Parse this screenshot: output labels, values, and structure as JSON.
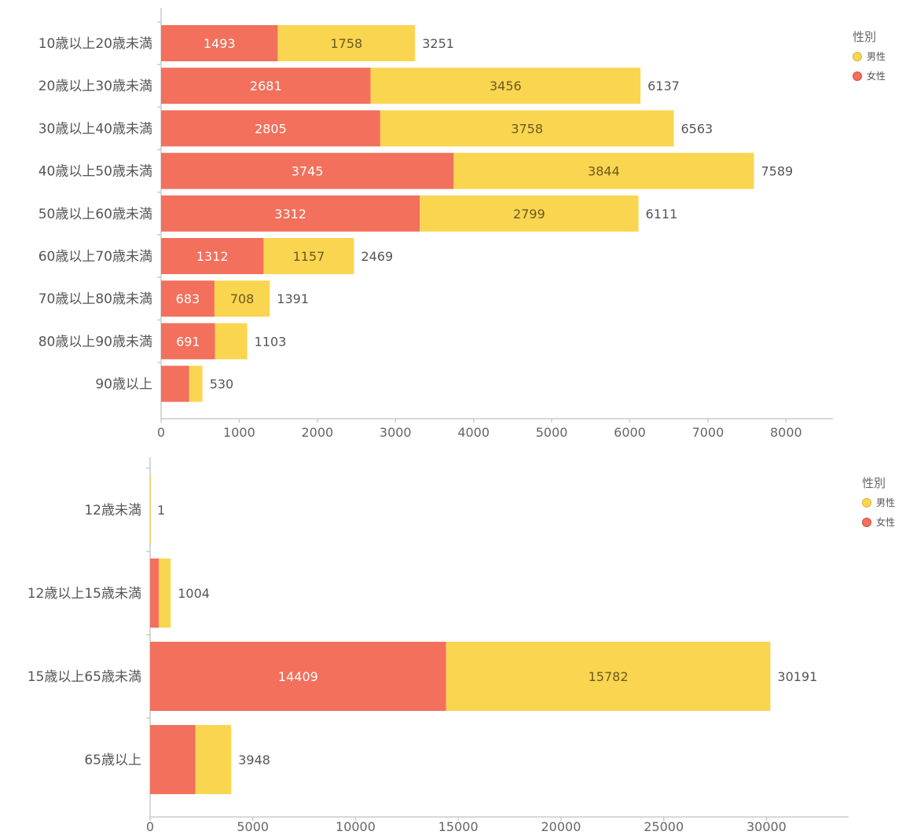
{
  "colors": {
    "female": "#F2705C",
    "male": "#FAD550",
    "female_text": "#ffffff",
    "male_text": "#6b5a20"
  },
  "chart_data": [
    {
      "type": "bar",
      "orientation": "horizontal",
      "stacked": true,
      "categories": [
        "10歳以上20歳未満",
        "20歳以上30歳未満",
        "30歳以上40歳未満",
        "40歳以上50歳未満",
        "50歳以上60歳未満",
        "60歳以上70歳未満",
        "70歳以上80歳未満",
        "80歳以上90歳未満",
        "90歳以上"
      ],
      "series": [
        {
          "name": "女性",
          "values": [
            1493,
            2681,
            2805,
            3745,
            3312,
            1312,
            683,
            691,
            360
          ]
        },
        {
          "name": "男性",
          "values": [
            1758,
            3456,
            3758,
            3844,
            2799,
            1157,
            708,
            412,
            170
          ]
        }
      ],
      "segment_labels": {
        "女性": [
          "1493",
          "2681",
          "2805",
          "3745",
          "3312",
          "1312",
          "683",
          "691",
          ""
        ],
        "男性": [
          "1758",
          "3456",
          "3758",
          "3844",
          "2799",
          "1157",
          "708",
          "",
          ""
        ]
      },
      "totals": [
        "3251",
        "6137",
        "6563",
        "7589",
        "6111",
        "2469",
        "1391",
        "1103",
        "530"
      ],
      "xlim": [
        0,
        8600
      ],
      "ticks": [
        "0",
        "1000",
        "2000",
        "3000",
        "4000",
        "5000",
        "6000",
        "7000",
        "8000"
      ],
      "tick_values": [
        0,
        1000,
        2000,
        3000,
        4000,
        5000,
        6000,
        7000,
        8000
      ],
      "legend_title": "性別",
      "legend": [
        "男性",
        "女性"
      ],
      "legend_position": "top-right"
    },
    {
      "type": "bar",
      "orientation": "horizontal",
      "stacked": true,
      "categories": [
        "12歳未満",
        "12歳以上15歳未満",
        "15歳以上65歳未満",
        "65歳以上"
      ],
      "series": [
        {
          "name": "女性",
          "values": [
            0,
            430,
            14409,
            2200
          ]
        },
        {
          "name": "男性",
          "values": [
            1,
            574,
            15782,
            1748
          ]
        }
      ],
      "segment_labels": {
        "女性": [
          "",
          "",
          "14409",
          ""
        ],
        "男性": [
          "",
          "",
          "15782",
          ""
        ]
      },
      "totals": [
        "1",
        "1004",
        "30191",
        "3948"
      ],
      "xlim": [
        0,
        34000
      ],
      "ticks": [
        "0",
        "5000",
        "10000",
        "15000",
        "20000",
        "25000",
        "30000"
      ],
      "tick_values": [
        0,
        5000,
        10000,
        15000,
        20000,
        25000,
        30000
      ],
      "legend_title": "性別",
      "legend": [
        "男性",
        "女性"
      ],
      "legend_position": "top-right"
    }
  ]
}
